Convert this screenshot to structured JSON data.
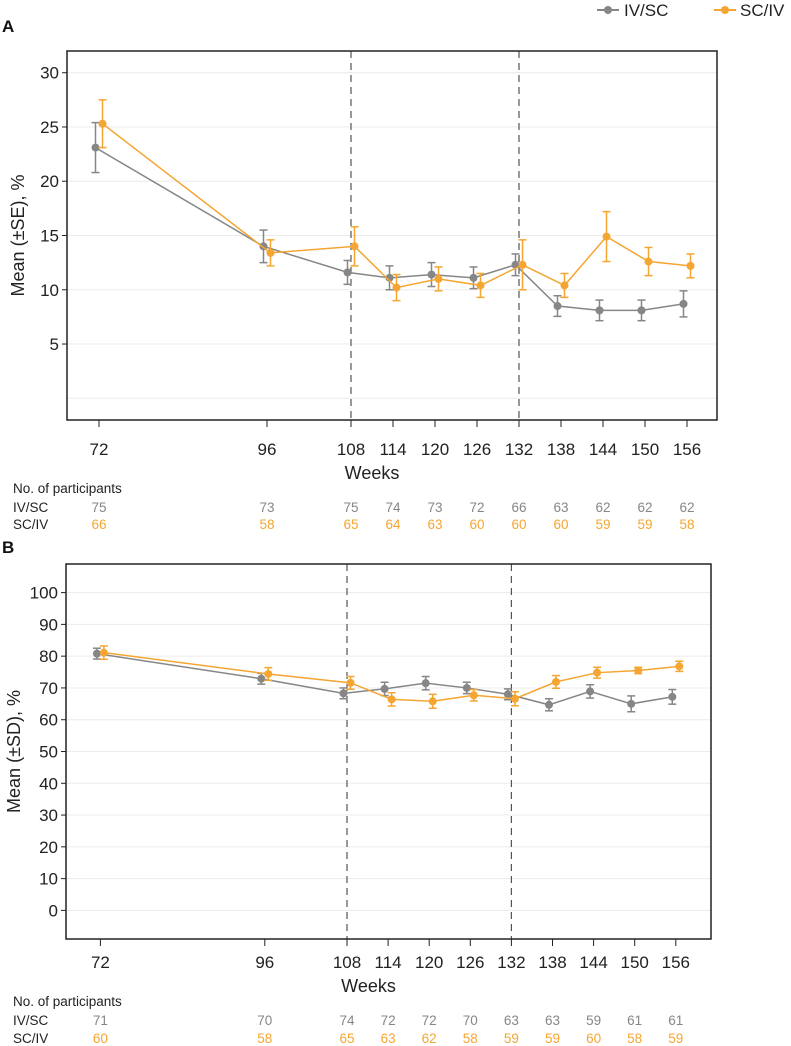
{
  "legend": [
    {
      "name": "IV/SC",
      "color": "#868686"
    },
    {
      "name": "SC/IV",
      "color": "#f5a531"
    }
  ],
  "chart_data": [
    {
      "type": "line",
      "panel_label": "A",
      "xlabel": "Weeks",
      "ylabel": "Mean (±SE), %",
      "x": [
        72,
        96,
        108,
        114,
        120,
        126,
        132,
        138,
        144,
        150,
        156
      ],
      "x_tick_labels": [
        "72",
        "96",
        "108",
        "114",
        "120",
        "126",
        "132",
        "138",
        "144",
        "150",
        "156"
      ],
      "ylim": [
        -2,
        32
      ],
      "y_ticks": [
        5,
        10,
        15,
        20,
        25,
        30
      ],
      "y_tick_labels": [
        "5",
        "10",
        "15",
        "20",
        "25",
        "30"
      ],
      "y_gridlines": [
        0,
        5,
        10,
        15,
        20,
        25,
        30
      ],
      "vertical_dashed_lines": [
        108,
        132
      ],
      "error_bar": "SE",
      "series": [
        {
          "name": "IV/SC",
          "values": [
            23.1,
            14.0,
            11.6,
            11.1,
            11.4,
            11.1,
            12.3,
            8.5,
            8.1,
            8.1,
            8.7
          ],
          "errors": [
            2.3,
            1.5,
            1.1,
            1.1,
            1.1,
            1.0,
            1.0,
            0.95,
            0.95,
            0.95,
            1.2
          ]
        },
        {
          "name": "SC/IV",
          "values": [
            25.3,
            13.4,
            14.0,
            10.2,
            11.0,
            10.4,
            12.3,
            10.4,
            14.9,
            12.6,
            12.2
          ],
          "errors": [
            2.2,
            1.2,
            1.8,
            1.2,
            1.1,
            1.1,
            2.3,
            1.1,
            2.3,
            1.3,
            1.1
          ]
        }
      ],
      "participants": {
        "title": "No. of participants",
        "rows": [
          {
            "name": "IV/SC",
            "counts": [
              "75",
              "73",
              "75",
              "74",
              "73",
              "72",
              "66",
              "63",
              "62",
              "62",
              "62"
            ]
          },
          {
            "name": "SC/IV",
            "counts": [
              "66",
              "58",
              "65",
              "64",
              "63",
              "60",
              "60",
              "60",
              "59",
              "59",
              "58"
            ]
          }
        ]
      }
    },
    {
      "type": "line",
      "panel_label": "B",
      "xlabel": "Weeks",
      "ylabel": "Mean (±SD), %",
      "x": [
        72,
        96,
        108,
        114,
        120,
        126,
        132,
        138,
        144,
        150,
        156
      ],
      "x_tick_labels": [
        "72",
        "96",
        "108",
        "114",
        "120",
        "126",
        "132",
        "138",
        "144",
        "150",
        "156"
      ],
      "ylim": [
        -9,
        109
      ],
      "y_ticks": [
        0,
        10,
        20,
        30,
        40,
        50,
        60,
        70,
        80,
        90,
        100
      ],
      "y_tick_labels": [
        "0",
        "10",
        "20",
        "30",
        "40",
        "50",
        "60",
        "70",
        "80",
        "90",
        "100"
      ],
      "y_gridlines": [
        0,
        10,
        20,
        30,
        40,
        50,
        60,
        70,
        80,
        90,
        100
      ],
      "vertical_dashed_lines": [
        108,
        132
      ],
      "error_bar": "SD",
      "series": [
        {
          "name": "IV/SC",
          "values": [
            80.8,
            72.9,
            68.3,
            69.7,
            71.5,
            70.0,
            68.0,
            64.7,
            68.9,
            65.0,
            67.2
          ],
          "errors": [
            1.7,
            1.7,
            1.7,
            2.1,
            2.1,
            1.8,
            1.7,
            1.9,
            2.1,
            2.5,
            2.3
          ]
        },
        {
          "name": "SC/IV",
          "values": [
            81.1,
            74.4,
            71.6,
            66.4,
            65.8,
            67.7,
            66.6,
            71.9,
            74.8,
            75.5,
            76.8
          ],
          "errors": [
            2.1,
            2.0,
            2.0,
            2.1,
            2.2,
            1.8,
            2.2,
            2.0,
            1.7,
            1.0,
            1.6
          ]
        }
      ],
      "participants": {
        "title": "No. of participants",
        "rows": [
          {
            "name": "IV/SC",
            "counts": [
              "71",
              "70",
              "74",
              "72",
              "72",
              "70",
              "63",
              "63",
              "59",
              "61",
              "61"
            ]
          },
          {
            "name": "SC/IV",
            "counts": [
              "60",
              "58",
              "65",
              "63",
              "62",
              "58",
              "59",
              "59",
              "60",
              "58",
              "59"
            ]
          }
        ]
      }
    }
  ]
}
